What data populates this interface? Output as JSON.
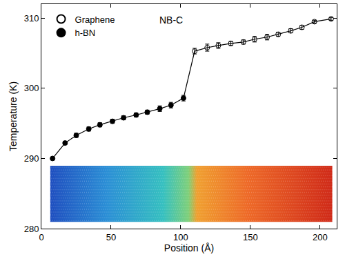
{
  "chart_data": {
    "type": "scatter",
    "annotations": [
      "NB-C"
    ],
    "x_label": "Position (Å)",
    "y_label": "Temperature (K)",
    "xlim": [
      0,
      212
    ],
    "xticks": [
      0,
      50,
      100,
      150,
      200
    ],
    "ylim": [
      280,
      312
    ],
    "yticks": [
      280,
      290,
      300,
      310
    ],
    "grid": false,
    "legend": "top-left",
    "line_style": "solid",
    "series": [
      {
        "name": "h-BN",
        "color": "#000000",
        "marker": "filled_circle",
        "x": [
          8,
          17,
          25,
          34,
          42,
          51,
          59,
          68,
          76,
          85,
          93,
          102
        ],
        "values": [
          290.0,
          292.2,
          293.3,
          294.2,
          294.8,
          295.3,
          295.8,
          296.2,
          296.6,
          297.1,
          297.6,
          298.6
        ],
        "errors": [
          0.2,
          0.2,
          0.3,
          0.3,
          0.3,
          0.3,
          0.3,
          0.3,
          0.3,
          0.4,
          0.4,
          0.4
        ]
      },
      {
        "name": "Graphene",
        "color": "#000000",
        "marker": "open_circle",
        "x": [
          110,
          119,
          127,
          136,
          145,
          153,
          162,
          170,
          179,
          187,
          196,
          208
        ],
        "values": [
          305.3,
          305.8,
          306.1,
          306.4,
          306.6,
          307.0,
          307.3,
          307.7,
          308.2,
          308.7,
          309.5,
          309.9
        ],
        "errors": [
          0.4,
          0.5,
          0.4,
          0.3,
          0.3,
          0.4,
          0.4,
          0.3,
          0.3,
          0.3,
          0.2,
          0.2
        ]
      }
    ]
  }
}
